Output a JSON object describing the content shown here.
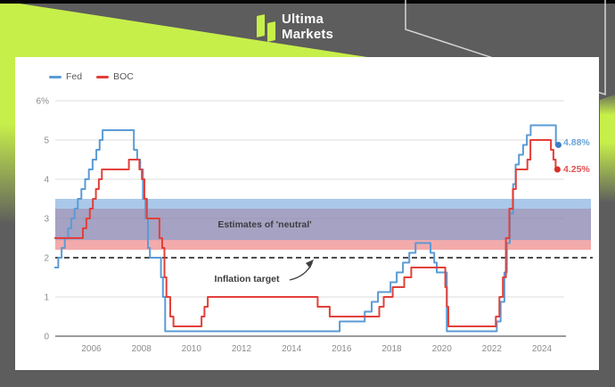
{
  "brand": {
    "line1": "Ultima",
    "line2": "Markets"
  },
  "theme": {
    "background": "#5d5d5d",
    "accent_green": "#c7ef4a",
    "top_bar": "#060606",
    "panel": "#ffffff",
    "fed_blue": "#5b9bd5",
    "boc_red": "#e2403a"
  },
  "chart_data": {
    "type": "line",
    "style": "step",
    "x_visible_range": [
      2004.5,
      2025.2
    ],
    "ylim": [
      0,
      6
    ],
    "grid": "horizontal",
    "legend_position": "top-left",
    "legend": [
      {
        "label": "Fed",
        "color": "#5b9bd5"
      },
      {
        "label": "BOC",
        "color": "#e2403a"
      }
    ],
    "y_ticks": [
      {
        "v": 6,
        "label": "6%"
      },
      {
        "v": 5,
        "label": "5"
      },
      {
        "v": 4,
        "label": "4"
      },
      {
        "v": 3,
        "label": "3"
      },
      {
        "v": 2,
        "label": "2"
      },
      {
        "v": 1,
        "label": "1"
      },
      {
        "v": 0,
        "label": "0"
      }
    ],
    "x_ticks": [
      2006,
      2008,
      2010,
      2012,
      2014,
      2016,
      2018,
      2020,
      2022,
      2024
    ],
    "dashed_target": 2,
    "annotations": {
      "neutral": "Estimates of 'neutral'",
      "inflation": "Inflation target"
    },
    "bands": [
      {
        "name": "boc-neutral-range",
        "from": 2.2,
        "to": 3.25,
        "color": "rgba(232,85,85,0.5)"
      },
      {
        "name": "fed-neutral-range",
        "from": 2.45,
        "to": 3.5,
        "color": "rgba(100,155,215,0.55)"
      }
    ],
    "series": [
      {
        "name": "Fed",
        "color": "#5b9bd5",
        "dot_color": "#3d7fc1",
        "end_label": "4.88%",
        "points": [
          [
            2004.55,
            1.75
          ],
          [
            2004.68,
            2
          ],
          [
            2004.81,
            2.25
          ],
          [
            2004.94,
            2.5
          ],
          [
            2005.07,
            2.75
          ],
          [
            2005.2,
            3
          ],
          [
            2005.33,
            3.25
          ],
          [
            2005.46,
            3.5
          ],
          [
            2005.6,
            3.75
          ],
          [
            2005.75,
            4
          ],
          [
            2005.9,
            4.25
          ],
          [
            2006.05,
            4.5
          ],
          [
            2006.2,
            4.75
          ],
          [
            2006.33,
            5
          ],
          [
            2006.45,
            5.25
          ],
          [
            2007.7,
            4.75
          ],
          [
            2007.83,
            4.5
          ],
          [
            2007.95,
            4.25
          ],
          [
            2008.06,
            3.5
          ],
          [
            2008.16,
            3
          ],
          [
            2008.26,
            2.25
          ],
          [
            2008.34,
            2
          ],
          [
            2008.78,
            1.5
          ],
          [
            2008.86,
            1
          ],
          [
            2008.95,
            0.125
          ],
          [
            2015.92,
            0.375
          ],
          [
            2016.92,
            0.625
          ],
          [
            2017.2,
            0.875
          ],
          [
            2017.45,
            1.125
          ],
          [
            2017.95,
            1.375
          ],
          [
            2018.2,
            1.625
          ],
          [
            2018.45,
            1.875
          ],
          [
            2018.7,
            2.125
          ],
          [
            2018.95,
            2.375
          ],
          [
            2019.55,
            2.125
          ],
          [
            2019.7,
            1.875
          ],
          [
            2019.8,
            1.625
          ],
          [
            2020.2,
            0.125
          ],
          [
            2022.2,
            0.375
          ],
          [
            2022.35,
            0.875
          ],
          [
            2022.5,
            1.625
          ],
          [
            2022.6,
            2.375
          ],
          [
            2022.72,
            3.125
          ],
          [
            2022.85,
            3.875
          ],
          [
            2022.95,
            4.375
          ],
          [
            2023.08,
            4.625
          ],
          [
            2023.25,
            4.875
          ],
          [
            2023.4,
            5.125
          ],
          [
            2023.55,
            5.375
          ],
          [
            2024.56,
            4.875
          ],
          [
            2024.66,
            4.875
          ]
        ]
      },
      {
        "name": "BOC",
        "color": "#e2403a",
        "dot_color": "#d93025",
        "end_label": "4.25%",
        "points": [
          [
            2004.55,
            2.5
          ],
          [
            2005.66,
            2.75
          ],
          [
            2005.8,
            3
          ],
          [
            2005.94,
            3.25
          ],
          [
            2006.06,
            3.5
          ],
          [
            2006.18,
            3.75
          ],
          [
            2006.3,
            4
          ],
          [
            2006.42,
            4.25
          ],
          [
            2007.5,
            4.5
          ],
          [
            2007.92,
            4.25
          ],
          [
            2008.02,
            4
          ],
          [
            2008.12,
            3.5
          ],
          [
            2008.22,
            3
          ],
          [
            2008.72,
            2.5
          ],
          [
            2008.83,
            2.25
          ],
          [
            2008.92,
            1.5
          ],
          [
            2009.0,
            1
          ],
          [
            2009.15,
            0.5
          ],
          [
            2009.28,
            0.25
          ],
          [
            2010.4,
            0.5
          ],
          [
            2010.52,
            0.75
          ],
          [
            2010.65,
            1
          ],
          [
            2015.04,
            0.75
          ],
          [
            2015.52,
            0.5
          ],
          [
            2017.5,
            0.75
          ],
          [
            2017.68,
            1
          ],
          [
            2018.04,
            1.25
          ],
          [
            2018.5,
            1.5
          ],
          [
            2018.78,
            1.75
          ],
          [
            2020.14,
            1.25
          ],
          [
            2020.2,
            0.75
          ],
          [
            2020.26,
            0.25
          ],
          [
            2022.16,
            0.5
          ],
          [
            2022.3,
            1
          ],
          [
            2022.44,
            1.5
          ],
          [
            2022.56,
            2.5
          ],
          [
            2022.7,
            3.25
          ],
          [
            2022.84,
            3.75
          ],
          [
            2022.96,
            4.25
          ],
          [
            2023.42,
            4.5
          ],
          [
            2023.54,
            5
          ],
          [
            2024.36,
            4.75
          ],
          [
            2024.46,
            4.5
          ],
          [
            2024.55,
            4.25
          ],
          [
            2024.62,
            4.25
          ]
        ]
      }
    ]
  }
}
